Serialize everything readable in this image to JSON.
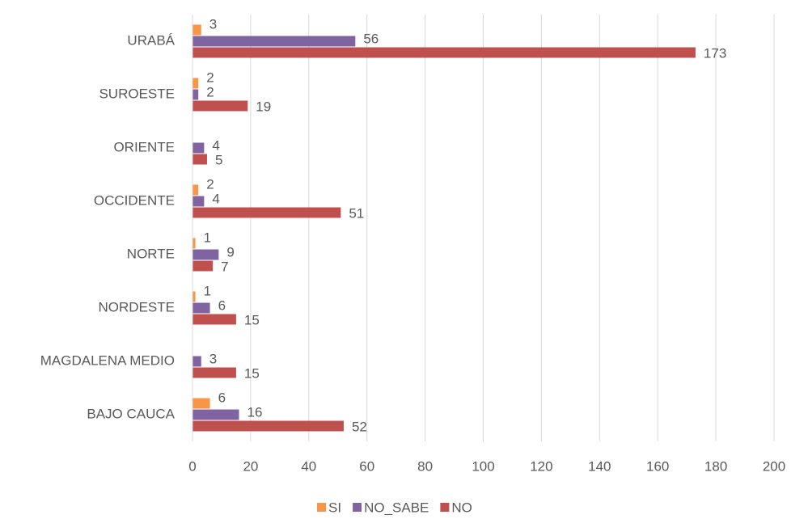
{
  "chart_data": {
    "type": "hbar",
    "categories": [
      "URABÁ",
      "SUROESTE",
      "ORIENTE",
      "OCCIDENTE",
      "NORTE",
      "NORDESTE",
      "MAGDALENA MEDIO",
      "BAJO CAUCA"
    ],
    "series": [
      {
        "name": "SI",
        "color": "#f79646",
        "values": [
          3,
          2,
          null,
          2,
          1,
          1,
          null,
          6
        ]
      },
      {
        "name": "NO_SABE",
        "color": "#8064a2",
        "values": [
          56,
          2,
          4,
          4,
          9,
          6,
          3,
          16
        ]
      },
      {
        "name": "NO",
        "color": "#c0504d",
        "values": [
          173,
          19,
          5,
          51,
          7,
          15,
          15,
          52
        ]
      }
    ],
    "xlim": [
      0,
      200
    ],
    "xticks": [
      0,
      20,
      40,
      60,
      80,
      100,
      120,
      140,
      160,
      180,
      200
    ],
    "grid": true,
    "legend": "bottom"
  }
}
